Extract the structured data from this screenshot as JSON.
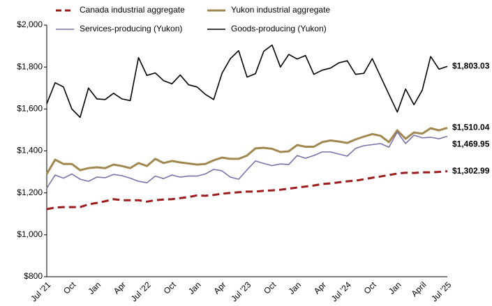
{
  "chart_data": {
    "type": "line",
    "categories": [
      "Jul '21",
      null,
      null,
      "Oct",
      null,
      null,
      "Jan",
      null,
      null,
      "Apr",
      null,
      null,
      "Jul '22",
      null,
      null,
      "Oct",
      null,
      null,
      "Jan",
      null,
      null,
      "Apr",
      null,
      null,
      "Jul '23",
      null,
      null,
      "Oct",
      null,
      null,
      "Jan",
      null,
      null,
      "Apr",
      null,
      null,
      "Jul '24",
      null,
      null,
      "Oct",
      null,
      null,
      "Jan",
      null,
      null,
      "April",
      null,
      null,
      "Jul '25"
    ],
    "ylim": [
      800,
      2000
    ],
    "yticks": [
      {
        "value": 800,
        "label": "$800"
      },
      {
        "value": 1000,
        "label": "$1,000"
      },
      {
        "value": 1200,
        "label": "$1,200"
      },
      {
        "value": 1400,
        "label": "$1,400"
      },
      {
        "value": 1600,
        "label": "$1,600"
      },
      {
        "value": 1800,
        "label": "$1,800"
      },
      {
        "value": 2000,
        "label": "$2,000"
      }
    ],
    "series": [
      {
        "name": "Canada industrial aggregate",
        "color": "#9b1c1c",
        "dashed": true,
        "values": [
          1122,
          1130,
          1132,
          1132,
          1132,
          1145,
          1152,
          1160,
          1170,
          1165,
          1165,
          1165,
          1158,
          1165,
          1168,
          1170,
          1175,
          1180,
          1188,
          1186,
          1190,
          1196,
          1200,
          1203,
          1206,
          1206,
          1210,
          1212,
          1215,
          1220,
          1225,
          1230,
          1235,
          1242,
          1245,
          1250,
          1255,
          1258,
          1265,
          1272,
          1278,
          1285,
          1292,
          1296,
          1295,
          1298,
          1298,
          1300,
          1302.99
        ],
        "value_labels": [
          null,
          null,
          null,
          null,
          null,
          null,
          null,
          null,
          null,
          null,
          null,
          null,
          null,
          null,
          null,
          null,
          null,
          null,
          null,
          null,
          null,
          null,
          null,
          null,
          null,
          null,
          null,
          null,
          null,
          null,
          null,
          null,
          null,
          null,
          null,
          null,
          null,
          null,
          null,
          null,
          null,
          null,
          null,
          null,
          null,
          null,
          null,
          null,
          "$1,302.99"
        ]
      },
      {
        "name": "Yukon industrial aggregate",
        "color": "#a08850",
        "values": [
          1290,
          1358,
          1338,
          1338,
          1308,
          1318,
          1322,
          1318,
          1335,
          1328,
          1318,
          1342,
          1328,
          1362,
          1342,
          1352,
          1345,
          1340,
          1335,
          1338,
          1355,
          1368,
          1362,
          1362,
          1378,
          1412,
          1415,
          1410,
          1395,
          1398,
          1428,
          1420,
          1420,
          1442,
          1450,
          1445,
          1438,
          1455,
          1468,
          1480,
          1472,
          1442,
          1498,
          1458,
          1488,
          1482,
          1508,
          1498,
          1510.04
        ],
        "value_labels": [
          null,
          null,
          null,
          null,
          null,
          null,
          null,
          null,
          null,
          null,
          null,
          null,
          null,
          null,
          null,
          null,
          null,
          null,
          null,
          null,
          null,
          null,
          null,
          null,
          null,
          null,
          null,
          null,
          null,
          null,
          null,
          null,
          null,
          null,
          null,
          null,
          null,
          null,
          null,
          null,
          null,
          null,
          null,
          null,
          null,
          null,
          null,
          null,
          "$1,510.04"
        ]
      },
      {
        "name": "Services-producing (Yukon)",
        "color": "#7b72a8",
        "values": [
          1222,
          1285,
          1270,
          1290,
          1265,
          1255,
          1275,
          1272,
          1288,
          1282,
          1270,
          1255,
          1248,
          1280,
          1268,
          1285,
          1275,
          1280,
          1280,
          1290,
          1312,
          1305,
          1275,
          1265,
          1310,
          1352,
          1340,
          1330,
          1338,
          1335,
          1378,
          1365,
          1378,
          1395,
          1395,
          1385,
          1375,
          1412,
          1425,
          1430,
          1435,
          1418,
          1490,
          1435,
          1475,
          1462,
          1465,
          1458,
          1469.95
        ],
        "value_labels": [
          null,
          null,
          null,
          null,
          null,
          null,
          null,
          null,
          null,
          null,
          null,
          null,
          null,
          null,
          null,
          null,
          null,
          null,
          null,
          null,
          null,
          null,
          null,
          null,
          null,
          null,
          null,
          null,
          null,
          null,
          null,
          null,
          null,
          null,
          null,
          null,
          null,
          null,
          null,
          null,
          null,
          null,
          null,
          null,
          null,
          null,
          null,
          null,
          "$1,469.95"
        ]
      },
      {
        "name": "Goods-producing (Yukon)",
        "color": "#000000",
        "values": [
          1625,
          1725,
          1705,
          1600,
          1560,
          1700,
          1648,
          1645,
          1675,
          1648,
          1640,
          1845,
          1760,
          1772,
          1735,
          1720,
          1762,
          1715,
          1705,
          1670,
          1645,
          1770,
          1840,
          1878,
          1752,
          1768,
          1875,
          1905,
          1800,
          1860,
          1838,
          1855,
          1765,
          1785,
          1795,
          1820,
          1830,
          1765,
          1770,
          1840,
          1755,
          1670,
          1585,
          1695,
          1620,
          1690,
          1850,
          1790,
          1803.03
        ],
        "value_labels": [
          null,
          null,
          null,
          null,
          null,
          null,
          null,
          null,
          null,
          null,
          null,
          null,
          null,
          null,
          null,
          null,
          null,
          null,
          null,
          null,
          null,
          null,
          null,
          null,
          null,
          null,
          null,
          null,
          null,
          null,
          null,
          null,
          null,
          null,
          null,
          null,
          null,
          null,
          null,
          null,
          null,
          null,
          null,
          null,
          null,
          null,
          null,
          null,
          "$1,803.03"
        ]
      }
    ]
  }
}
